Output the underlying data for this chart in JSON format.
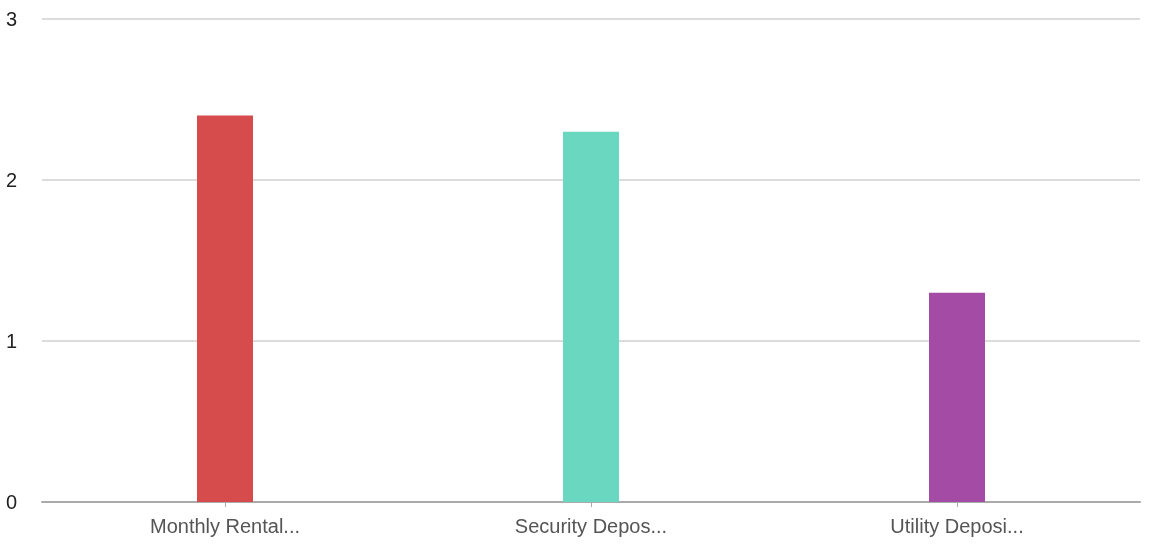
{
  "chart_data": {
    "type": "bar",
    "categories": [
      "Monthly Rental...",
      "Security Depos...",
      "Utility Deposi..."
    ],
    "values": [
      2.4,
      2.3,
      1.3
    ],
    "colors": [
      "#d64b4b",
      "#6ad8c0",
      "#a44ba6"
    ],
    "ylim": [
      0,
      3
    ],
    "yticks": [
      0,
      1,
      2,
      3
    ],
    "grid": "y"
  }
}
